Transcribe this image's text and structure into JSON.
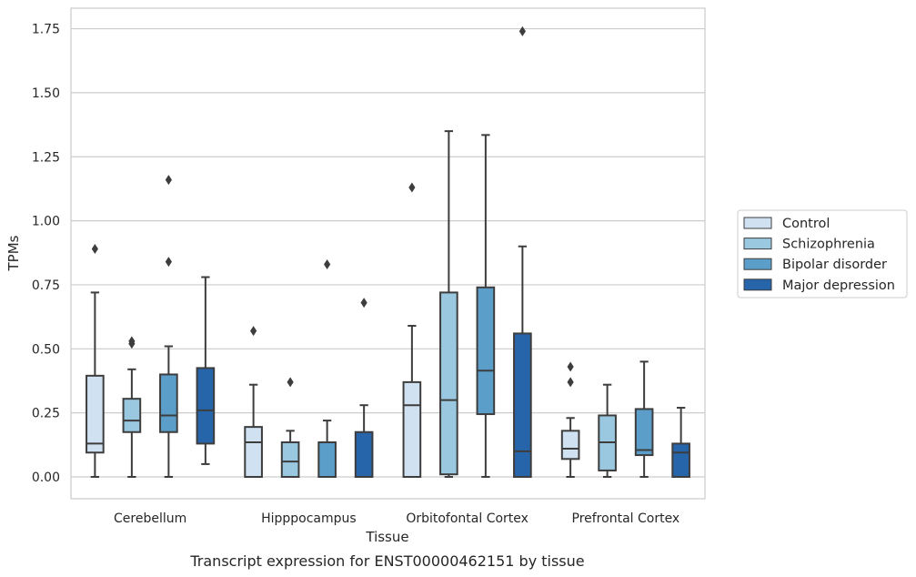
{
  "chart_data": {
    "type": "box",
    "xlabel": "Tissue",
    "ylabel": "TPMs",
    "caption": "Transcript expression for ENST00000462151 by tissue",
    "ylim": [
      -0.08,
      1.83
    ],
    "yticks": [
      0.0,
      0.25,
      0.5,
      0.75,
      1.0,
      1.25,
      1.5,
      1.75
    ],
    "ytick_labels": [
      "0.00",
      "0.25",
      "0.50",
      "0.75",
      "1.00",
      "1.25",
      "1.50",
      "1.75"
    ],
    "grid": "horizontal",
    "legend_position": "right",
    "categories": [
      "Cerebellum",
      "Hipppocampus",
      "Orbitofontal Cortex",
      "Prefrontal Cortex"
    ],
    "series": [
      {
        "name": "Control",
        "color": "#d0e1f2",
        "boxes": [
          {
            "whislo": 0.0,
            "q1": 0.095,
            "med": 0.13,
            "q3": 0.395,
            "whishi": 0.72,
            "fliers": [
              0.89
            ]
          },
          {
            "whislo": 0.0,
            "q1": 0.0,
            "med": 0.135,
            "q3": 0.195,
            "whishi": 0.36,
            "fliers": [
              0.57
            ]
          },
          {
            "whislo": 0.0,
            "q1": 0.0,
            "med": 0.28,
            "q3": 0.37,
            "whishi": 0.59,
            "fliers": [
              1.13
            ]
          },
          {
            "whislo": 0.0,
            "q1": 0.07,
            "med": 0.11,
            "q3": 0.18,
            "whishi": 0.23,
            "fliers": [
              0.37,
              0.43
            ]
          }
        ]
      },
      {
        "name": "Schizophrenia",
        "color": "#9ac8e0",
        "boxes": [
          {
            "whislo": 0.0,
            "q1": 0.175,
            "med": 0.22,
            "q3": 0.305,
            "whishi": 0.42,
            "fliers": [
              0.52,
              0.53
            ]
          },
          {
            "whislo": 0.0,
            "q1": 0.0,
            "med": 0.06,
            "q3": 0.135,
            "whishi": 0.18,
            "fliers": [
              0.37
            ]
          },
          {
            "whislo": 0.0,
            "q1": 0.01,
            "med": 0.3,
            "q3": 0.72,
            "whishi": 1.35,
            "fliers": []
          },
          {
            "whislo": 0.0,
            "q1": 0.025,
            "med": 0.135,
            "q3": 0.24,
            "whishi": 0.36,
            "fliers": []
          }
        ]
      },
      {
        "name": "Bipolar disorder",
        "color": "#5a9ec9",
        "boxes": [
          {
            "whislo": 0.0,
            "q1": 0.175,
            "med": 0.24,
            "q3": 0.4,
            "whishi": 0.51,
            "fliers": [
              0.84,
              1.16
            ]
          },
          {
            "whislo": 0.0,
            "q1": 0.0,
            "med": 0.135,
            "q3": 0.135,
            "whishi": 0.22,
            "fliers": [
              0.83
            ]
          },
          {
            "whislo": 0.0,
            "q1": 0.245,
            "med": 0.415,
            "q3": 0.74,
            "whishi": 1.335,
            "fliers": []
          },
          {
            "whislo": 0.0,
            "q1": 0.085,
            "med": 0.105,
            "q3": 0.265,
            "whishi": 0.45,
            "fliers": []
          }
        ]
      },
      {
        "name": "Major depression",
        "color": "#2765ab",
        "boxes": [
          {
            "whislo": 0.05,
            "q1": 0.13,
            "med": 0.26,
            "q3": 0.425,
            "whishi": 0.78,
            "fliers": []
          },
          {
            "whislo": 0.0,
            "q1": 0.0,
            "med": 0.0,
            "q3": 0.175,
            "whishi": 0.28,
            "fliers": [
              0.68
            ]
          },
          {
            "whislo": 0.0,
            "q1": 0.0,
            "med": 0.1,
            "q3": 0.56,
            "whishi": 0.9,
            "fliers": [
              1.74
            ]
          },
          {
            "whislo": 0.0,
            "q1": 0.0,
            "med": 0.095,
            "q3": 0.13,
            "whishi": 0.27,
            "fliers": []
          }
        ]
      }
    ]
  }
}
